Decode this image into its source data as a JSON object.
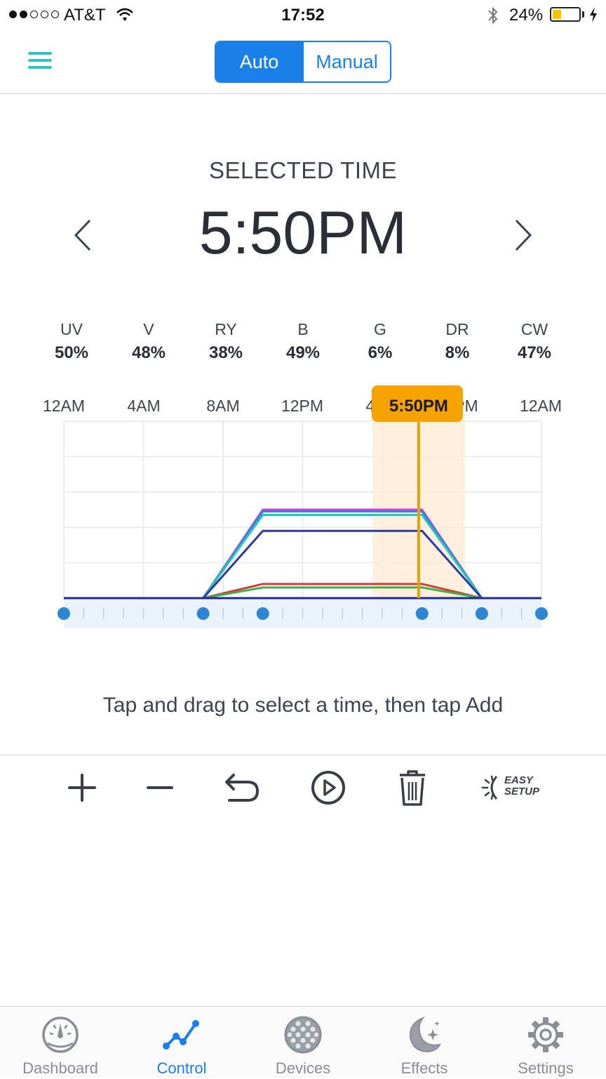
{
  "status_bar": {
    "carrier": "AT&T",
    "time": "17:52",
    "battery": "24%",
    "signal_bars_filled": 2,
    "signal_bars_total": 5,
    "battery_level": 0.24
  },
  "nav": {
    "mode_auto": "Auto",
    "mode_manual": "Manual",
    "active_mode": "Auto"
  },
  "selected": {
    "label": "SELECTED TIME",
    "time": "5:50PM"
  },
  "channels": [
    {
      "name": "UV",
      "value": "50%"
    },
    {
      "name": "V",
      "value": "48%"
    },
    {
      "name": "RY",
      "value": "38%"
    },
    {
      "name": "B",
      "value": "49%"
    },
    {
      "name": "G",
      "value": "6%"
    },
    {
      "name": "DR",
      "value": "8%"
    },
    {
      "name": "CW",
      "value": "47%"
    }
  ],
  "chart_data": {
    "type": "line",
    "x_unit": "hours",
    "xlim": [
      0,
      24
    ],
    "ylim": [
      0,
      100
    ],
    "tick_labels": [
      "12AM",
      "4AM",
      "8AM",
      "12PM",
      "4PM",
      "8PM",
      "12AM"
    ],
    "selected_label": "5:50PM",
    "selected_hour": 17.83,
    "control_points": [
      0,
      7,
      10,
      18,
      21,
      24
    ],
    "series": [
      {
        "color": "#d63bd6",
        "x": [
          0,
          7,
          10,
          18,
          21,
          24
        ],
        "y": [
          0,
          0,
          50,
          50,
          0,
          0
        ]
      },
      {
        "color": "#2e86de",
        "x": [
          0,
          7,
          10,
          18,
          21,
          24
        ],
        "y": [
          0,
          0,
          49,
          49,
          0,
          0
        ]
      },
      {
        "color": "#26c6b8",
        "x": [
          0,
          7,
          10,
          18,
          21,
          24
        ],
        "y": [
          0,
          0,
          47,
          47,
          0,
          0
        ]
      },
      {
        "color": "#2f3a9e",
        "x": [
          0,
          7,
          10,
          18,
          21,
          24
        ],
        "y": [
          0,
          0,
          38,
          38,
          0,
          0
        ]
      },
      {
        "color": "#d63b3b",
        "x": [
          0,
          7,
          10,
          18,
          21,
          24
        ],
        "y": [
          0,
          0,
          8,
          8,
          0,
          0
        ]
      },
      {
        "color": "#3cb04a",
        "x": [
          0,
          7,
          10,
          18,
          21,
          24
        ],
        "y": [
          0,
          0,
          6,
          6,
          0,
          0
        ]
      },
      {
        "color": "#1f2a8c",
        "x": [
          0,
          7,
          10,
          18,
          21,
          24
        ],
        "y": [
          0,
          0,
          0,
          0,
          0,
          0
        ]
      }
    ]
  },
  "hint": "Tap and drag to select a time, then tap Add",
  "toolbar": {
    "add": "add-icon",
    "remove": "minus-icon",
    "undo": "undo-icon",
    "play": "play-icon",
    "delete": "trash-icon",
    "easy_setup_line1": "EASY",
    "easy_setup_line2": "SETUP"
  },
  "tabs": [
    {
      "label": "Dashboard",
      "icon": "gauge-icon"
    },
    {
      "label": "Control",
      "icon": "graph-icon"
    },
    {
      "label": "Devices",
      "icon": "grid-dots-icon"
    },
    {
      "label": "Effects",
      "icon": "moon-stars-icon"
    },
    {
      "label": "Settings",
      "icon": "gear-icon"
    }
  ],
  "active_tab": "Control",
  "colors": {
    "accent": "#1a7fe8",
    "highlight": "#f6a200",
    "menu_icon": "#35c0c0"
  }
}
